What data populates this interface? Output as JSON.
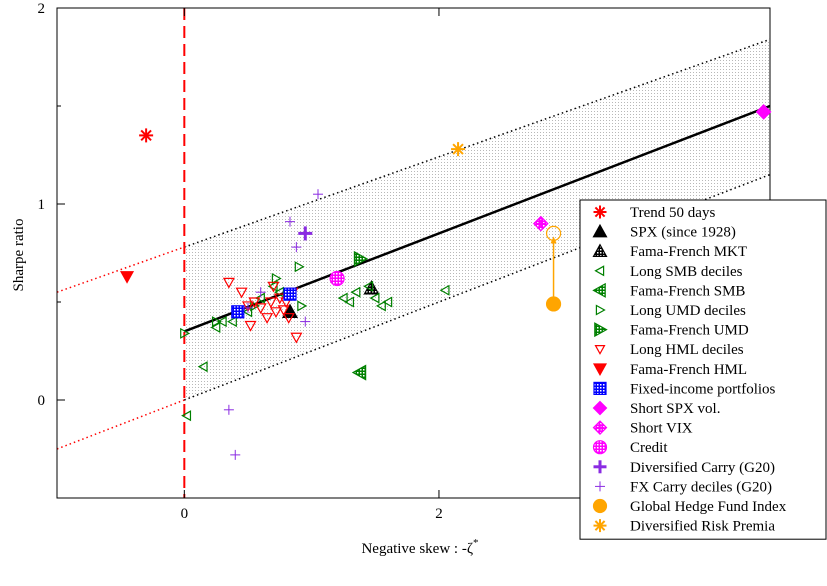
{
  "chart_data": {
    "type": "scatter",
    "xlabel_prefix": "Negative skew : -ζ",
    "xlabel_sup": "*",
    "ylabel": "Sharpe ratio",
    "xlim": [
      -1,
      4.6
    ],
    "ylim": [
      -0.5,
      2
    ],
    "x_ticks": [
      0,
      2
    ],
    "y_ticks": [
      0,
      1,
      2
    ],
    "fit_line": {
      "x": [
        0,
        4.6
      ],
      "y": [
        0.35,
        1.5
      ],
      "color": "#000000"
    },
    "band_upper": {
      "x": [
        -1,
        4.6
      ],
      "y": [
        0.55,
        1.84
      ]
    },
    "band_lower": {
      "x": [
        -1,
        4.6
      ],
      "y": [
        -0.25,
        1.15
      ]
    },
    "zero_skew_line": {
      "x": 0,
      "color": "#ff0000"
    },
    "hedge_arrow": {
      "from": [
        2.9,
        0.49
      ],
      "to": [
        2.9,
        0.85
      ],
      "color": "#ffa500"
    },
    "series": [
      {
        "name": "Trend 50 days",
        "marker": "asterisk",
        "color": "#ff0000",
        "points": [
          [
            -0.3,
            1.35
          ]
        ]
      },
      {
        "name": "SPX (since 1928)",
        "marker": "triangle-up",
        "color": "#000000",
        "points": [
          [
            0.83,
            0.45
          ]
        ]
      },
      {
        "name": "Fama-French MKT",
        "marker": "triangle-up-hatched",
        "color": "#000000",
        "points": [
          [
            1.47,
            0.57
          ]
        ]
      },
      {
        "name": "Long SMB deciles",
        "marker": "triangle-left-open",
        "color": "#008000",
        "points": [
          [
            0.25,
            0.37
          ],
          [
            0.3,
            0.4
          ],
          [
            0.38,
            0.4
          ],
          [
            0.5,
            0.45
          ],
          [
            0.6,
            0.52
          ],
          [
            0.7,
            0.58
          ],
          [
            0.75,
            0.55
          ],
          [
            1.25,
            0.52
          ],
          [
            1.3,
            0.5
          ],
          [
            1.35,
            0.55
          ],
          [
            1.45,
            0.58
          ],
          [
            1.5,
            0.52
          ],
          [
            1.55,
            0.48
          ],
          [
            1.6,
            0.5
          ],
          [
            2.05,
            0.56
          ],
          [
            0.15,
            0.17
          ],
          [
            0.02,
            -0.08
          ]
        ]
      },
      {
        "name": "Fama-French SMB",
        "marker": "triangle-left-hatched",
        "color": "#008000",
        "points": [
          [
            1.38,
            0.14
          ]
        ]
      },
      {
        "name": "Long UMD deciles",
        "marker": "triangle-right-open",
        "color": "#008000",
        "points": [
          [
            0.0,
            0.34
          ],
          [
            0.25,
            0.4
          ],
          [
            0.42,
            0.45
          ],
          [
            0.55,
            0.48
          ],
          [
            0.72,
            0.62
          ],
          [
            0.9,
            0.68
          ],
          [
            0.92,
            0.48
          ],
          [
            1.2,
            0.62
          ]
        ]
      },
      {
        "name": "Fama-French UMD",
        "marker": "triangle-right-hatched",
        "color": "#008000",
        "points": [
          [
            1.38,
            0.72
          ]
        ]
      },
      {
        "name": "Long HML deciles",
        "marker": "triangle-down-open",
        "color": "#ff0000",
        "points": [
          [
            0.35,
            0.6
          ],
          [
            0.45,
            0.55
          ],
          [
            0.5,
            0.48
          ],
          [
            0.52,
            0.38
          ],
          [
            0.55,
            0.5
          ],
          [
            0.6,
            0.47
          ],
          [
            0.65,
            0.42
          ],
          [
            0.68,
            0.5
          ],
          [
            0.7,
            0.58
          ],
          [
            0.72,
            0.45
          ],
          [
            0.75,
            0.52
          ],
          [
            0.78,
            0.46
          ],
          [
            0.8,
            0.5
          ],
          [
            0.82,
            0.42
          ],
          [
            0.85,
            0.55
          ],
          [
            0.88,
            0.32
          ]
        ]
      },
      {
        "name": "Fama-French HML",
        "marker": "triangle-down",
        "color": "#ff0000",
        "points": [
          [
            -0.45,
            0.63
          ]
        ]
      },
      {
        "name": "Fixed-income portfolios",
        "marker": "square-hatched",
        "color": "#0000ff",
        "points": [
          [
            0.42,
            0.45
          ],
          [
            0.83,
            0.54
          ]
        ]
      },
      {
        "name": "Short SPX vol.",
        "marker": "diamond",
        "color": "#ff00ff",
        "points": [
          [
            4.55,
            1.47
          ]
        ]
      },
      {
        "name": "Short VIX",
        "marker": "diamond-plus",
        "color": "#ff00ff",
        "points": [
          [
            2.8,
            0.9
          ]
        ]
      },
      {
        "name": "Credit",
        "marker": "circle-hatched",
        "color": "#ff00ff",
        "points": [
          [
            1.2,
            0.62
          ]
        ]
      },
      {
        "name": "Diversified Carry (G20)",
        "marker": "plus-bold",
        "color": "#8a2be2",
        "points": [
          [
            0.95,
            0.85
          ]
        ]
      },
      {
        "name": "FX Carry deciles (G20)",
        "marker": "plus",
        "color": "#8a2be2",
        "points": [
          [
            1.05,
            1.05
          ],
          [
            0.83,
            0.91
          ],
          [
            0.88,
            0.78
          ],
          [
            0.95,
            0.4
          ],
          [
            0.35,
            -0.05
          ],
          [
            0.4,
            -0.28
          ],
          [
            0.5,
            0.47
          ],
          [
            0.6,
            0.55
          ]
        ]
      },
      {
        "name": "Global Hedge Fund Index",
        "marker": "circle",
        "color": "#ffa500",
        "points": [
          [
            2.9,
            0.49
          ]
        ]
      },
      {
        "name": "Diversified Risk Premia",
        "marker": "asterisk",
        "color": "#ffa500",
        "points": [
          [
            2.15,
            1.28
          ]
        ]
      }
    ]
  }
}
